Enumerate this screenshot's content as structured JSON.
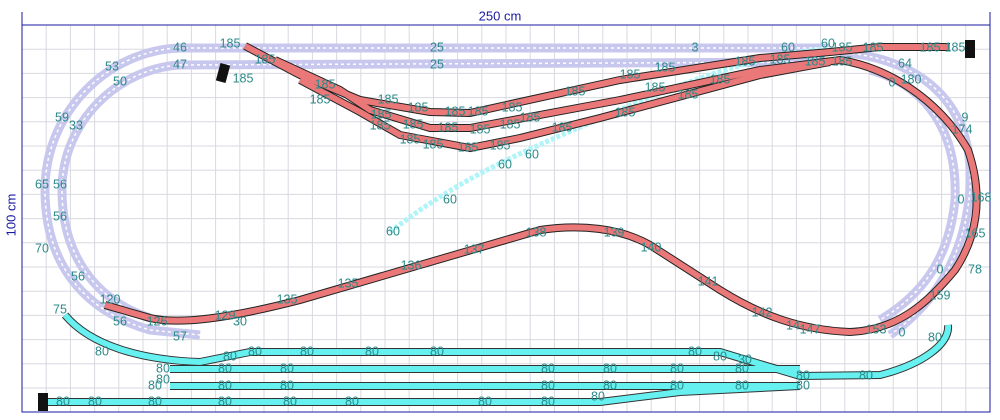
{
  "dimensions": {
    "width_label": "250 cm",
    "height_label": "100 cm"
  },
  "track_labels": [
    "46",
    "185",
    "25",
    "3",
    "60",
    "60",
    "185",
    "185",
    "185",
    "185",
    "47",
    "185",
    "25",
    "185",
    "185",
    "185",
    "185",
    "185",
    "185",
    "185",
    "185",
    "185",
    "185",
    "185",
    "185",
    "185",
    "185",
    "185",
    "185",
    "185",
    "185",
    "185",
    "185",
    "185",
    "185",
    "185",
    "185",
    "185",
    "185",
    "185",
    "185",
    "185",
    "185",
    "185",
    "60",
    "60",
    "60",
    "60",
    "53",
    "50",
    "59",
    "33",
    "65",
    "56",
    "56",
    "70",
    "56",
    "75",
    "120",
    "56",
    "126",
    "57",
    "129",
    "30",
    "135",
    "135",
    "136",
    "137",
    "138",
    "139",
    "140",
    "141",
    "142",
    "14",
    "147",
    "153",
    "159",
    "180",
    "64",
    "0",
    "174",
    "9",
    "168",
    "0",
    "165",
    "78",
    "0",
    "0",
    "80",
    "80",
    "80",
    "80",
    "80",
    "80",
    "80",
    "80",
    "80",
    "30",
    "80",
    "80",
    "80",
    "80",
    "80",
    "80",
    "80",
    "80",
    "80",
    "80",
    "80",
    "80",
    "80",
    "80",
    "80",
    "80",
    "80",
    "80",
    "80",
    "80",
    "80",
    "80",
    "80",
    "80",
    "80",
    "80",
    "80"
  ]
}
